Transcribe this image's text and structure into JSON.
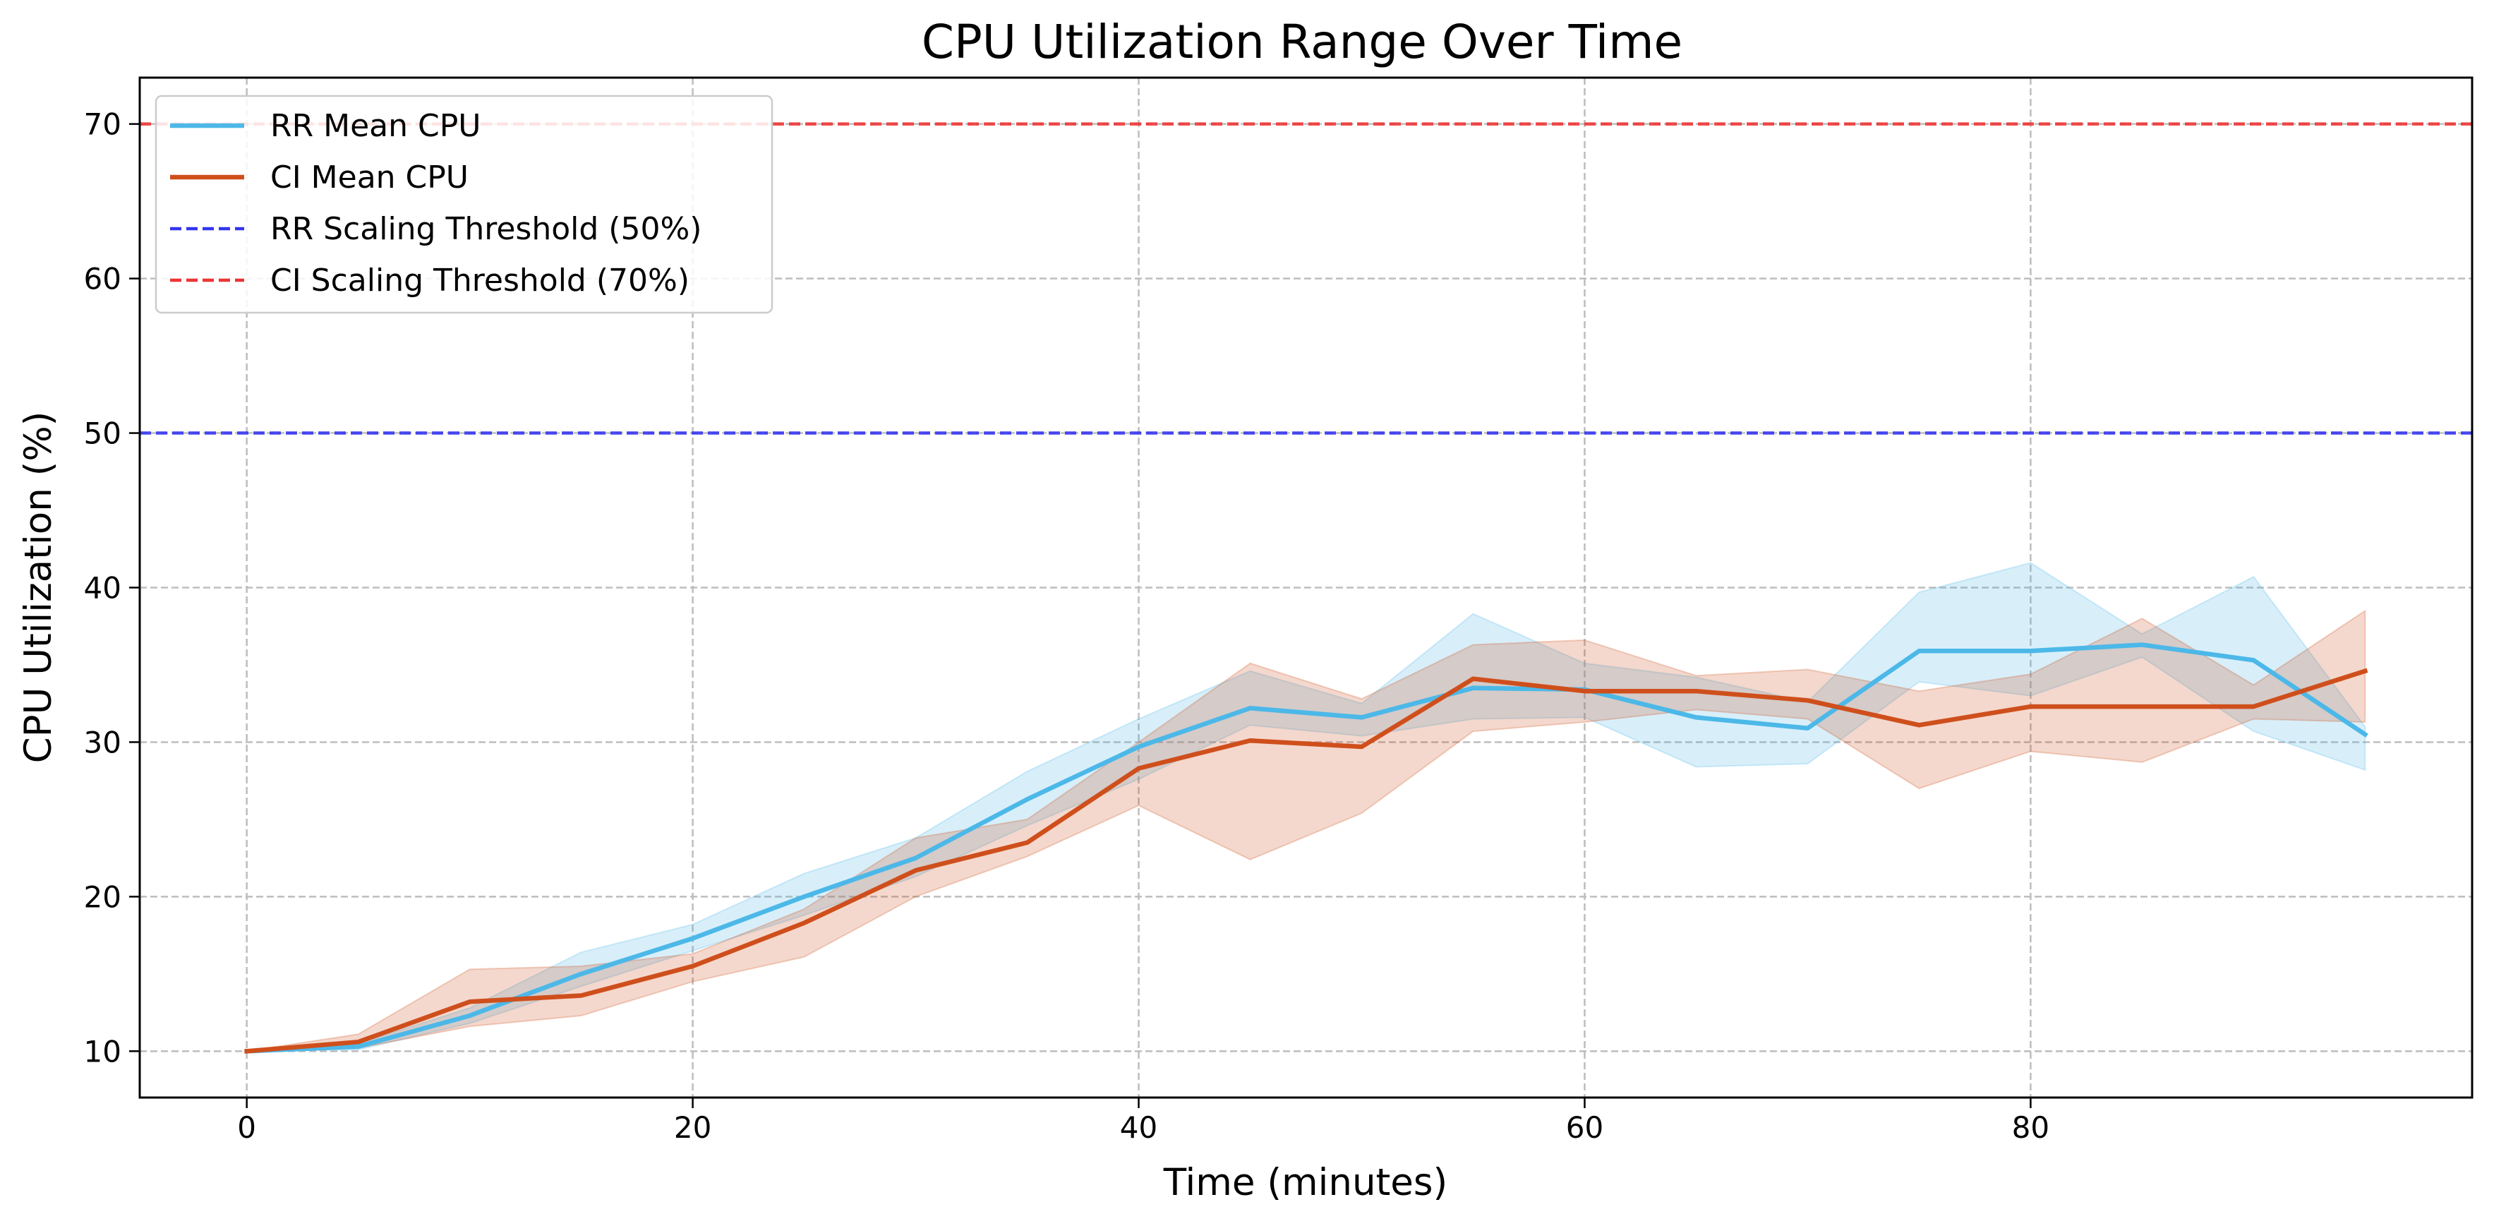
{
  "chart_data": {
    "type": "line",
    "title": "CPU Utilization Range Over Time",
    "xlabel": "Time (minutes)",
    "ylabel": "CPU Utilization (%)",
    "xlim": [
      -4.8,
      99.8
    ],
    "ylim": [
      7,
      73
    ],
    "xticks": [
      0,
      20,
      40,
      60,
      80
    ],
    "yticks": [
      10,
      20,
      30,
      40,
      50,
      60,
      70
    ],
    "grid": true,
    "legend_position": "top-left",
    "x": [
      0,
      5,
      10,
      15,
      20,
      25,
      30,
      35,
      40,
      45,
      50,
      55,
      60,
      65,
      70,
      75,
      80,
      85,
      90,
      95
    ],
    "series": [
      {
        "name": "RR Mean CPU",
        "color": "#4cb8e8",
        "values": [
          10.0,
          10.3,
          12.3,
          15.0,
          17.3,
          20.0,
          22.5,
          26.3,
          29.7,
          32.2,
          31.6,
          33.5,
          33.4,
          31.6,
          30.9,
          35.9,
          35.9,
          36.3,
          35.3,
          30.5
        ],
        "lower": [
          10.0,
          10.1,
          11.8,
          14.2,
          16.5,
          18.8,
          21.3,
          24.6,
          27.6,
          31.1,
          30.4,
          31.5,
          31.6,
          28.4,
          28.6,
          33.9,
          33.0,
          35.5,
          30.7,
          28.2
        ],
        "upper": [
          10.0,
          10.5,
          12.8,
          16.4,
          18.2,
          21.5,
          23.8,
          28.1,
          31.5,
          34.6,
          32.5,
          38.3,
          35.1,
          34.2,
          32.6,
          39.7,
          41.6,
          37.0,
          40.7,
          31.0
        ]
      },
      {
        "name": "CI Mean CPU",
        "color": "#cf4f1c",
        "values": [
          10.0,
          10.6,
          13.2,
          13.6,
          15.5,
          18.3,
          21.7,
          23.5,
          28.3,
          30.1,
          29.7,
          34.1,
          33.3,
          33.3,
          32.7,
          31.1,
          32.3,
          32.3,
          32.3,
          34.6
        ],
        "lower": [
          10.0,
          10.2,
          11.6,
          12.3,
          14.5,
          16.1,
          20.0,
          22.6,
          25.9,
          22.4,
          25.4,
          30.7,
          31.3,
          32.1,
          31.5,
          27.0,
          29.4,
          28.7,
          31.5,
          31.3
        ],
        "upper": [
          10.0,
          11.1,
          15.3,
          15.5,
          16.3,
          19.2,
          23.8,
          25.0,
          30.0,
          35.1,
          32.8,
          36.3,
          36.6,
          34.3,
          34.7,
          33.3,
          34.4,
          38.0,
          33.7,
          38.5
        ]
      }
    ],
    "thresholds": [
      {
        "name": "RR Scaling Threshold (50%)",
        "value": 50,
        "color": "#3434ee"
      },
      {
        "name": "CI Scaling Threshold (70%)",
        "value": 70,
        "color": "#ee3434"
      }
    ]
  }
}
